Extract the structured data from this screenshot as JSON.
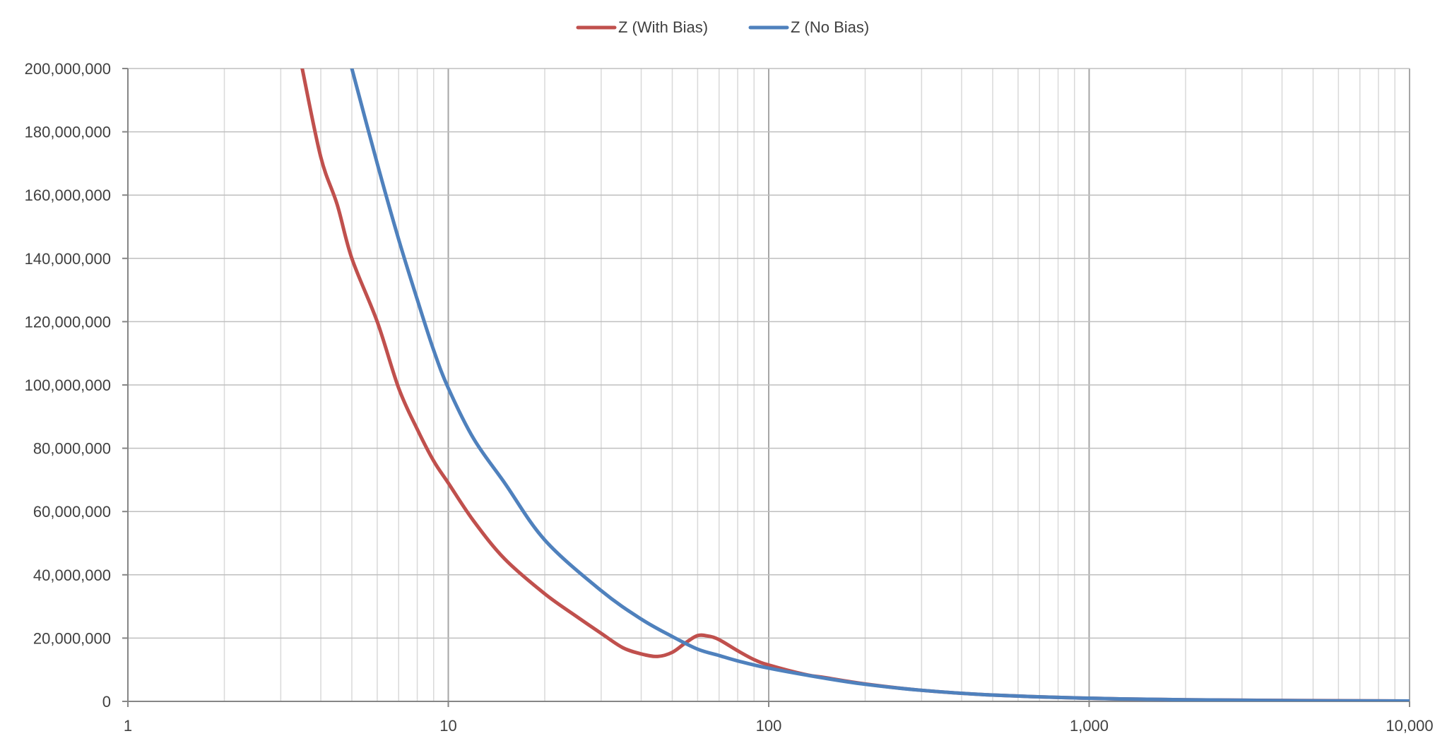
{
  "chart_data": {
    "type": "line",
    "title": "",
    "xlabel": "",
    "ylabel": "",
    "x_scale": "log",
    "xlim": [
      1,
      10000
    ],
    "ylim": [
      0,
      200000000
    ],
    "grid": true,
    "legend_position": "top-center",
    "x_tick_values": [
      1,
      10,
      100,
      1000,
      10000
    ],
    "x_tick_labels": [
      "1",
      "10",
      "100",
      "1,000",
      "10,000"
    ],
    "y_tick_values": [
      0,
      20000000,
      40000000,
      60000000,
      80000000,
      100000000,
      120000000,
      140000000,
      160000000,
      180000000,
      200000000
    ],
    "y_tick_labels": [
      "0",
      "20,000,000",
      "40,000,000",
      "60,000,000",
      "80,000,000",
      "100,000,000",
      "120,000,000",
      "140,000,000",
      "160,000,000",
      "180,000,000",
      "200,000,000"
    ],
    "series": [
      {
        "name": "Z (With Bias)",
        "color": "#c0504d",
        "points": [
          [
            3.5,
            200000000
          ],
          [
            4,
            172000000
          ],
          [
            4.5,
            157000000
          ],
          [
            5,
            140000000
          ],
          [
            6,
            120000000
          ],
          [
            7,
            99000000
          ],
          [
            8,
            86000000
          ],
          [
            9,
            76000000
          ],
          [
            10,
            69000000
          ],
          [
            12,
            57000000
          ],
          [
            15,
            45000000
          ],
          [
            20,
            34000000
          ],
          [
            25,
            27000000
          ],
          [
            30,
            21500000
          ],
          [
            35,
            17000000
          ],
          [
            40,
            15000000
          ],
          [
            45,
            14200000
          ],
          [
            50,
            15500000
          ],
          [
            55,
            18500000
          ],
          [
            60,
            20800000
          ],
          [
            65,
            20600000
          ],
          [
            70,
            19500000
          ],
          [
            80,
            16000000
          ],
          [
            90,
            13200000
          ],
          [
            100,
            11500000
          ],
          [
            130,
            8500000
          ],
          [
            150,
            7500000
          ],
          [
            200,
            5500000
          ],
          [
            300,
            3500000
          ],
          [
            500,
            2000000
          ],
          [
            1000,
            1000000
          ],
          [
            2000,
            500000
          ],
          [
            5000,
            250000
          ],
          [
            10000,
            100000
          ]
        ]
      },
      {
        "name": "Z (No Bias)",
        "color": "#4f81bd",
        "points": [
          [
            5,
            200000000
          ],
          [
            6,
            170000000
          ],
          [
            7,
            146000000
          ],
          [
            8,
            127000000
          ],
          [
            9,
            111000000
          ],
          [
            10,
            99000000
          ],
          [
            12,
            83000000
          ],
          [
            15,
            69000000
          ],
          [
            20,
            51000000
          ],
          [
            30,
            35000000
          ],
          [
            40,
            26000000
          ],
          [
            50,
            20500000
          ],
          [
            60,
            16500000
          ],
          [
            70,
            14500000
          ],
          [
            80,
            12800000
          ],
          [
            100,
            10500000
          ],
          [
            150,
            7300000
          ],
          [
            200,
            5400000
          ],
          [
            300,
            3500000
          ],
          [
            500,
            2000000
          ],
          [
            1000,
            1000000
          ],
          [
            2000,
            500000
          ],
          [
            5000,
            200000
          ],
          [
            10000,
            100000
          ]
        ]
      }
    ]
  }
}
